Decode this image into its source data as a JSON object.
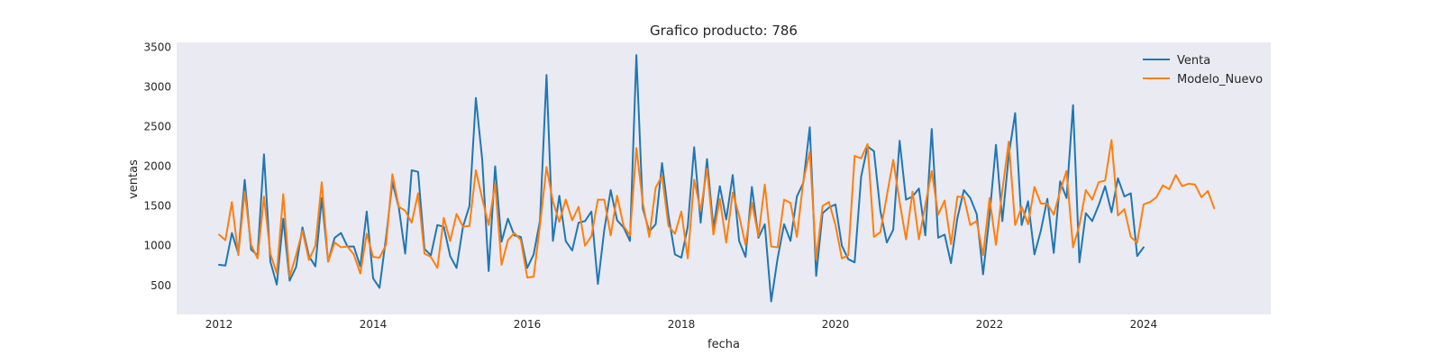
{
  "chart_data": {
    "type": "line",
    "title": "Grafico producto: 786",
    "xlabel": "fecha",
    "ylabel": "ventas",
    "xlim": [
      2011.45,
      2025.65
    ],
    "ylim": [
      135,
      3560
    ],
    "x_ticks": [
      2012,
      2014,
      2016,
      2018,
      2020,
      2022,
      2024
    ],
    "y_ticks": [
      500,
      1000,
      1500,
      2000,
      2500,
      3000,
      3500
    ],
    "grid": false,
    "legend": "top-right",
    "colors": {
      "background": "#eaeaf2",
      "Venta": "#1f77b4",
      "Modelo_Nuevo": "#ff7f0e"
    },
    "series": [
      {
        "name": "Venta",
        "start": 2012.0,
        "step": 0.0833333,
        "values": [
          760,
          750,
          1160,
          900,
          1830,
          950,
          880,
          2150,
          800,
          510,
          1340,
          560,
          730,
          1230,
          870,
          740,
          1600,
          800,
          1100,
          1160,
          990,
          990,
          740,
          1430,
          590,
          470,
          1100,
          1800,
          1480,
          900,
          1950,
          1930,
          960,
          880,
          1260,
          1240,
          870,
          720,
          1240,
          1500,
          2860,
          2080,
          680,
          2000,
          1050,
          1340,
          1130,
          1110,
          720,
          890,
          1320,
          3150,
          1060,
          1630,
          1060,
          940,
          1290,
          1310,
          1430,
          520,
          1200,
          1700,
          1320,
          1230,
          1060,
          3400,
          1470,
          1180,
          1270,
          2040,
          1380,
          890,
          850,
          1240,
          2240,
          1290,
          2090,
          1220,
          1750,
          1330,
          1890,
          1060,
          860,
          1740,
          1100,
          1270,
          300,
          840,
          1270,
          1060,
          1620,
          1790,
          2490,
          620,
          1410,
          1480,
          1520,
          1000,
          830,
          790,
          1870,
          2250,
          2190,
          1440,
          1040,
          1200,
          2320,
          1580,
          1620,
          1720,
          1130,
          2470,
          1100,
          1140,
          780,
          1350,
          1700,
          1600,
          1400,
          640,
          1380,
          2270,
          1310,
          2140,
          2670,
          1260,
          1560,
          890,
          1190,
          1590,
          910,
          1810,
          1600,
          2770,
          790,
          1410,
          1310,
          1510,
          1750,
          1420,
          1850,
          1620,
          1660,
          870,
          980
        ]
      },
      {
        "name": "Modelo_Nuevo",
        "start": 2012.0,
        "step": 0.0833333,
        "values": [
          1140,
          1070,
          1550,
          880,
          1680,
          1010,
          840,
          1620,
          900,
          650,
          1650,
          610,
          880,
          1190,
          820,
          1000,
          1800,
          800,
          1040,
          980,
          990,
          890,
          650,
          1150,
          860,
          850,
          1010,
          1900,
          1490,
          1440,
          1290,
          1660,
          900,
          860,
          720,
          1350,
          1060,
          1400,
          1240,
          1250,
          1950,
          1590,
          1260,
          1780,
          760,
          1070,
          1160,
          1070,
          600,
          610,
          1260,
          1990,
          1560,
          1300,
          1580,
          1320,
          1490,
          1000,
          1120,
          1580,
          1580,
          1130,
          1630,
          1250,
          1130,
          2230,
          1540,
          1110,
          1730,
          1880,
          1250,
          1150,
          1430,
          840,
          1830,
          1440,
          1970,
          1140,
          1590,
          1040,
          1670,
          1380,
          1010,
          1540,
          1120,
          1770,
          990,
          980,
          1580,
          1540,
          1110,
          1810,
          2180,
          830,
          1500,
          1550,
          1260,
          840,
          880,
          2130,
          2100,
          2280,
          1110,
          1170,
          1630,
          2080,
          1550,
          1080,
          1680,
          1080,
          1510,
          1940,
          1390,
          1570,
          1020,
          1620,
          1610,
          1260,
          1310,
          880,
          1600,
          1010,
          1700,
          2310,
          1260,
          1490,
          1270,
          1740,
          1530,
          1530,
          1390,
          1690,
          1940,
          980,
          1260,
          1700,
          1580,
          1800,
          1820,
          2330,
          1380,
          1460,
          1110,
          1040,
          1520,
          1550,
          1610,
          1760,
          1710,
          1890,
          1750,
          1780,
          1770,
          1610,
          1690,
          1470
        ]
      }
    ]
  }
}
